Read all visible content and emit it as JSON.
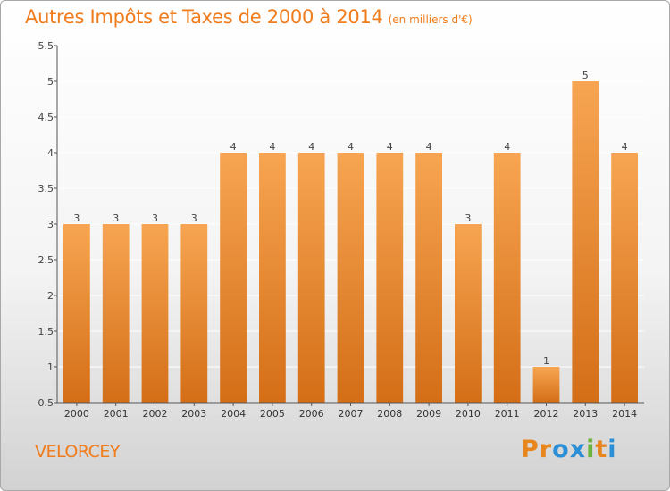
{
  "header": {
    "title": "Autres Impôts et Taxes de 2000 à 2014",
    "unit": "(en milliers d'€)"
  },
  "footer": {
    "place": "VELORCEY",
    "logo": "Proxiti",
    "logo_colors": [
      "#e8861e",
      "#e8861e",
      "#2a8fd6",
      "#2a8fd6",
      "#6cb33f",
      "#e8861e",
      "#2a8fd6"
    ]
  },
  "colors": {
    "bar_light": "#f7a552",
    "bar_dark": "#d46e17",
    "grid": "#ffffff",
    "axis": "#555555",
    "text": "#444444"
  },
  "chart_data": {
    "type": "bar",
    "title": "Autres Impôts et Taxes de 2000 à 2014",
    "subtitle": "(en milliers d'€)",
    "categories": [
      "2000",
      "2001",
      "2002",
      "2003",
      "2004",
      "2005",
      "2006",
      "2007",
      "2008",
      "2009",
      "2010",
      "2011",
      "2012",
      "2013",
      "2014"
    ],
    "values": [
      3,
      3,
      3,
      3,
      4,
      4,
      4,
      4,
      4,
      4,
      3,
      4,
      1,
      5,
      4
    ],
    "data_labels": [
      "3",
      "3",
      "3",
      "3",
      "4",
      "4",
      "4",
      "4",
      "4",
      "4",
      "3",
      "4",
      "1",
      "5",
      "4"
    ],
    "ylim": [
      0.5,
      5.5
    ],
    "yticks": [
      0.5,
      1,
      1.5,
      2,
      2.5,
      3,
      3.5,
      4,
      4.5,
      5,
      5.5
    ],
    "ytick_labels": [
      "0.5",
      "1",
      "1.5",
      "2",
      "2.5",
      "3",
      "3.5",
      "4",
      "4.5",
      "5",
      "5.5"
    ],
    "grid": true,
    "xlabel": "",
    "ylabel": ""
  }
}
